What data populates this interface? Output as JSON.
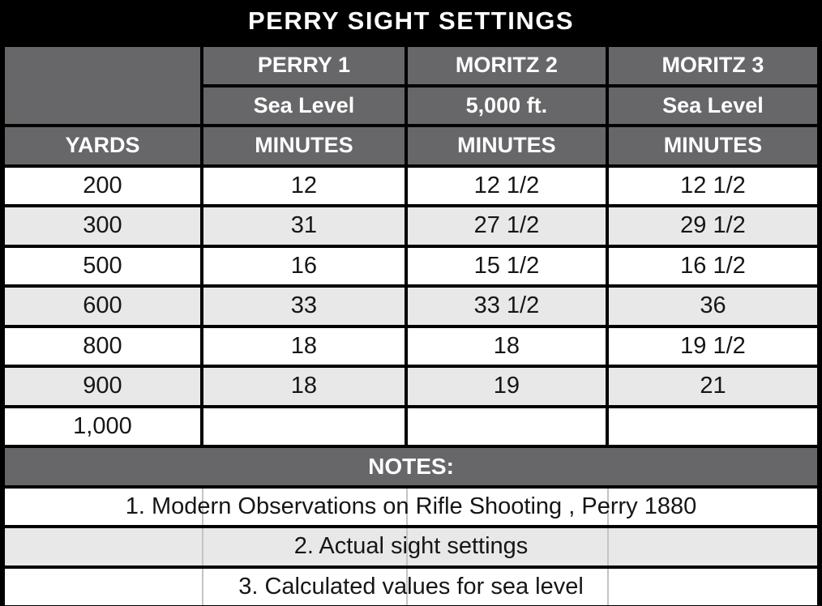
{
  "title": "PERRY SIGHT SETTINGS",
  "colors": {
    "title_bg": "#000000",
    "header_bg": "#676769",
    "header_text": "#ffffff",
    "row_bg": "#ffffff",
    "row_alt_bg": "#e8e8e8",
    "border": "#000000",
    "body_text": "#161616"
  },
  "header": {
    "groups": [
      {
        "name": "PERRY 1",
        "elevation": "Sea Level"
      },
      {
        "name": "MORITZ 2",
        "elevation": "5,000 ft."
      },
      {
        "name": "MORITZ 3",
        "elevation": "Sea Level"
      }
    ],
    "units": [
      "YARDS",
      "MINUTES",
      "MINUTES",
      "MINUTES"
    ]
  },
  "rows": [
    [
      "200",
      "12",
      "12 1/2",
      "12 1/2"
    ],
    [
      "300",
      "31",
      "27 1/2",
      "29 1/2"
    ],
    [
      "500",
      "16",
      "15 1/2",
      "16 1/2"
    ],
    [
      "600",
      "33",
      "33 1/2",
      "36"
    ],
    [
      "800",
      "18",
      "18",
      "19 1/2"
    ],
    [
      "900",
      "18",
      "19",
      "21"
    ],
    [
      "1,000",
      "",
      "",
      ""
    ]
  ],
  "notes": {
    "header": "NOTES:",
    "items": [
      "1. Modern Observations on Rifle Shooting , Perry 1880",
      "2. Actual sight settings",
      "3. Calculated values for sea level"
    ]
  },
  "chart_data": {
    "type": "table",
    "title": "PERRY SIGHT SETTINGS",
    "columns": [
      "YARDS",
      "PERRY 1 — Sea Level (MINUTES)",
      "MORITZ 2 — 5,000 ft. (MINUTES)",
      "MORITZ 3 — Sea Level (MINUTES)"
    ],
    "rows": [
      [
        200,
        12,
        12.5,
        12.5
      ],
      [
        300,
        31,
        27.5,
        29.5
      ],
      [
        500,
        16,
        15.5,
        16.5
      ],
      [
        600,
        33,
        33.5,
        36
      ],
      [
        800,
        18,
        18,
        19.5
      ],
      [
        900,
        18,
        19,
        21
      ],
      [
        1000,
        null,
        null,
        null
      ]
    ],
    "notes": [
      "1. Modern Observations on Rifle Shooting , Perry 1880",
      "2. Actual sight settings",
      "3. Calculated values for sea level"
    ]
  }
}
